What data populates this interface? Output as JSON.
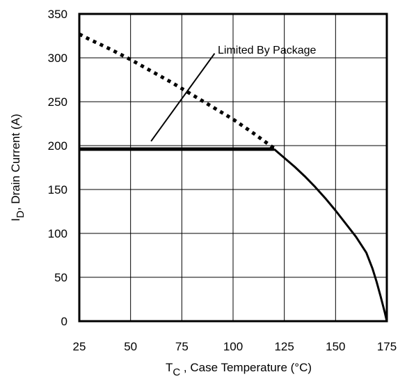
{
  "chart_data": {
    "type": "line",
    "title": "",
    "xlabel": {
      "main": "T",
      "sub": "C",
      "rest": " , Case Temperature (°C)"
    },
    "ylabel": {
      "main": "I",
      "sub": "D",
      "rest": ",  Drain Current (A)"
    },
    "xlim": [
      25,
      175
    ],
    "ylim": [
      0,
      350
    ],
    "xticks": [
      25,
      50,
      75,
      100,
      125,
      150,
      175
    ],
    "yticks": [
      0,
      50,
      100,
      150,
      200,
      250,
      300,
      350
    ],
    "grid": true,
    "annotation": {
      "text": "Limited By  Package",
      "pointer_from": [
        60,
        205
      ],
      "pointer_to": [
        91,
        305
      ]
    },
    "series": [
      {
        "style": "dashed",
        "x": [
          25,
          30,
          40,
          50,
          60,
          70,
          80,
          90,
          100,
          110,
          120
        ],
        "y": [
          327,
          321,
          310,
          298,
          285,
          272,
          258,
          244,
          230,
          214,
          197
        ]
      },
      {
        "style": "solid-thick",
        "x": [
          25,
          120
        ],
        "y": [
          196,
          196
        ]
      },
      {
        "style": "solid",
        "x": [
          120,
          125,
          130,
          135,
          140,
          145,
          150,
          155,
          160,
          165,
          168,
          170,
          172,
          174,
          175
        ],
        "y": [
          196,
          186,
          176,
          165,
          153,
          140,
          126,
          111,
          96,
          78,
          60,
          45,
          28,
          10,
          0
        ]
      }
    ]
  }
}
